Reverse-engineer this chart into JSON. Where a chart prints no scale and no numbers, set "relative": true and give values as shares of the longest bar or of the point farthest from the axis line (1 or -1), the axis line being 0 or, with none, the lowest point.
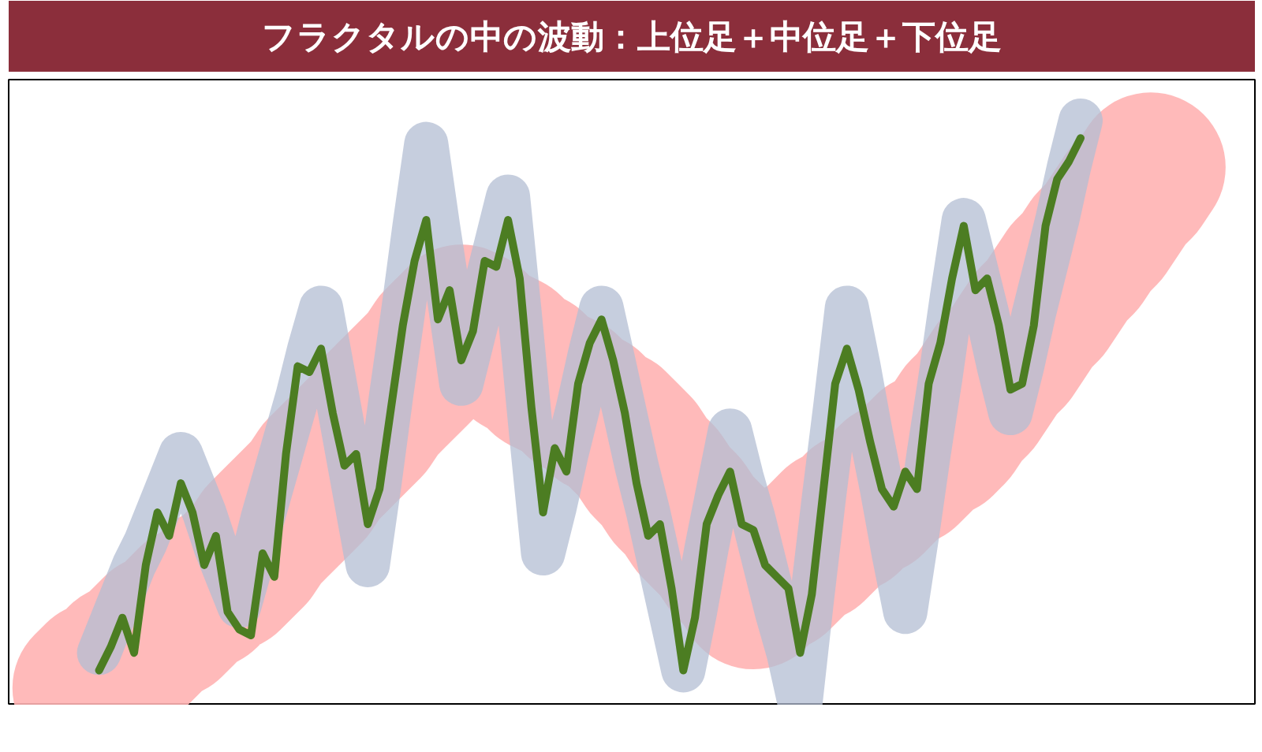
{
  "chart_data": {
    "type": "line",
    "title": "フラクタルの中の波動：上位足＋中位足＋下位足",
    "relative": true,
    "categories": [
      null,
      null,
      null,
      null,
      null,
      null,
      null,
      null,
      null,
      null,
      null,
      null,
      null,
      null,
      null,
      null,
      null,
      null,
      null,
      null,
      null,
      null,
      null,
      null,
      null,
      null,
      null,
      null,
      null,
      null,
      null,
      null,
      null,
      null,
      null,
      null,
      null,
      null,
      null,
      null,
      null,
      null,
      null,
      null,
      null,
      null,
      null,
      null,
      null,
      null,
      null,
      null,
      null,
      null,
      null,
      null,
      null,
      null,
      null,
      null,
      null,
      null,
      null,
      null,
      null,
      null,
      null,
      null,
      null,
      null,
      null,
      null,
      null,
      null,
      null,
      null,
      null,
      null,
      null,
      null,
      null,
      null,
      null,
      null,
      null,
      null,
      null,
      null,
      null,
      null,
      null,
      null
    ],
    "series": [
      {
        "color": "#ffb3b3",
        "values": [
          0.03,
          0.05,
          0.06,
          0.08,
          0.09,
          0.11,
          0.13,
          0.14,
          0.16,
          0.18,
          0.19,
          0.21,
          0.22,
          0.24,
          0.26,
          0.29,
          0.31,
          0.33,
          0.35,
          0.37,
          0.4,
          0.42,
          0.44,
          0.46,
          0.48,
          0.51,
          0.53,
          0.55,
          0.57,
          0.59,
          0.62,
          0.64,
          0.66,
          0.65,
          0.63,
          0.62,
          0.61,
          0.59,
          0.58,
          0.56,
          0.55,
          0.54,
          0.52,
          0.51,
          0.49,
          0.48,
          0.46,
          0.44,
          0.41,
          0.39,
          0.36,
          0.34,
          0.31,
          0.29,
          0.27,
          0.24,
          0.22,
          0.19,
          0.21,
          0.22,
          0.24,
          0.26,
          0.27,
          0.29,
          0.31,
          0.32,
          0.34,
          0.35,
          0.37,
          0.39,
          0.4,
          0.42,
          0.44,
          0.45,
          0.47,
          0.5,
          0.52,
          0.55,
          0.58,
          0.6,
          0.63,
          0.66,
          0.68,
          0.71,
          0.74,
          0.76,
          0.79,
          0.81,
          0.84,
          0.87,
          0.89,
          0.92
        ]
      },
      {
        "color": "#b3bed3",
        "values": [
          null,
          0.09,
          0.14,
          0.19,
          0.24,
          0.28,
          0.33,
          0.38,
          0.43,
          0.38,
          0.33,
          0.27,
          0.22,
          0.17,
          0.24,
          0.32,
          0.39,
          0.46,
          0.53,
          0.61,
          0.68,
          0.57,
          0.46,
          0.35,
          0.24,
          0.38,
          0.53,
          0.67,
          0.82,
          0.96,
          0.82,
          0.69,
          0.55,
          0.63,
          0.71,
          0.79,
          0.87,
          0.67,
          0.46,
          0.26,
          0.34,
          0.43,
          0.51,
          0.6,
          0.68,
          0.59,
          0.5,
          0.41,
          0.33,
          0.24,
          0.15,
          0.06,
          0.16,
          0.27,
          0.37,
          0.47,
          0.39,
          0.32,
          0.24,
          0.16,
          0.09,
          0,
          0.18,
          0.35,
          0.51,
          0.68,
          0.58,
          0.47,
          0.37,
          0.26,
          0.16,
          0.29,
          0.43,
          0.56,
          0.7,
          0.83,
          0.75,
          0.67,
          0.58,
          0.5,
          0.58,
          0.67,
          0.75,
          0.83,
          0.92,
          1,
          null,
          null,
          null,
          null,
          null,
          null
        ]
      },
      {
        "color": "#4c7d22",
        "values": [
          null,
          0.06,
          0.1,
          0.15,
          0.09,
          0.24,
          0.33,
          0.29,
          0.38,
          0.33,
          0.24,
          0.29,
          0.16,
          0.13,
          0.12,
          0.26,
          0.22,
          0.43,
          0.58,
          0.57,
          0.61,
          0.5,
          0.41,
          0.43,
          0.31,
          0.37,
          0.51,
          0.65,
          0.76,
          0.83,
          0.66,
          0.71,
          0.59,
          0.64,
          0.76,
          0.75,
          0.83,
          0.73,
          0.51,
          0.33,
          0.44,
          0.4,
          0.55,
          0.62,
          0.66,
          0.59,
          0.5,
          0.38,
          0.29,
          0.31,
          0.2,
          0.06,
          0.15,
          0.31,
          0.36,
          0.4,
          0.31,
          0.3,
          0.24,
          0.22,
          0.2,
          0.09,
          0.19,
          0.37,
          0.55,
          0.61,
          0.54,
          0.45,
          0.37,
          0.34,
          0.4,
          0.37,
          0.55,
          0.62,
          0.73,
          0.82,
          0.71,
          0.73,
          0.65,
          0.54,
          0.55,
          0.65,
          0.82,
          0.9,
          0.93,
          0.97,
          null,
          null,
          null,
          null,
          null,
          null
        ]
      }
    ]
  }
}
